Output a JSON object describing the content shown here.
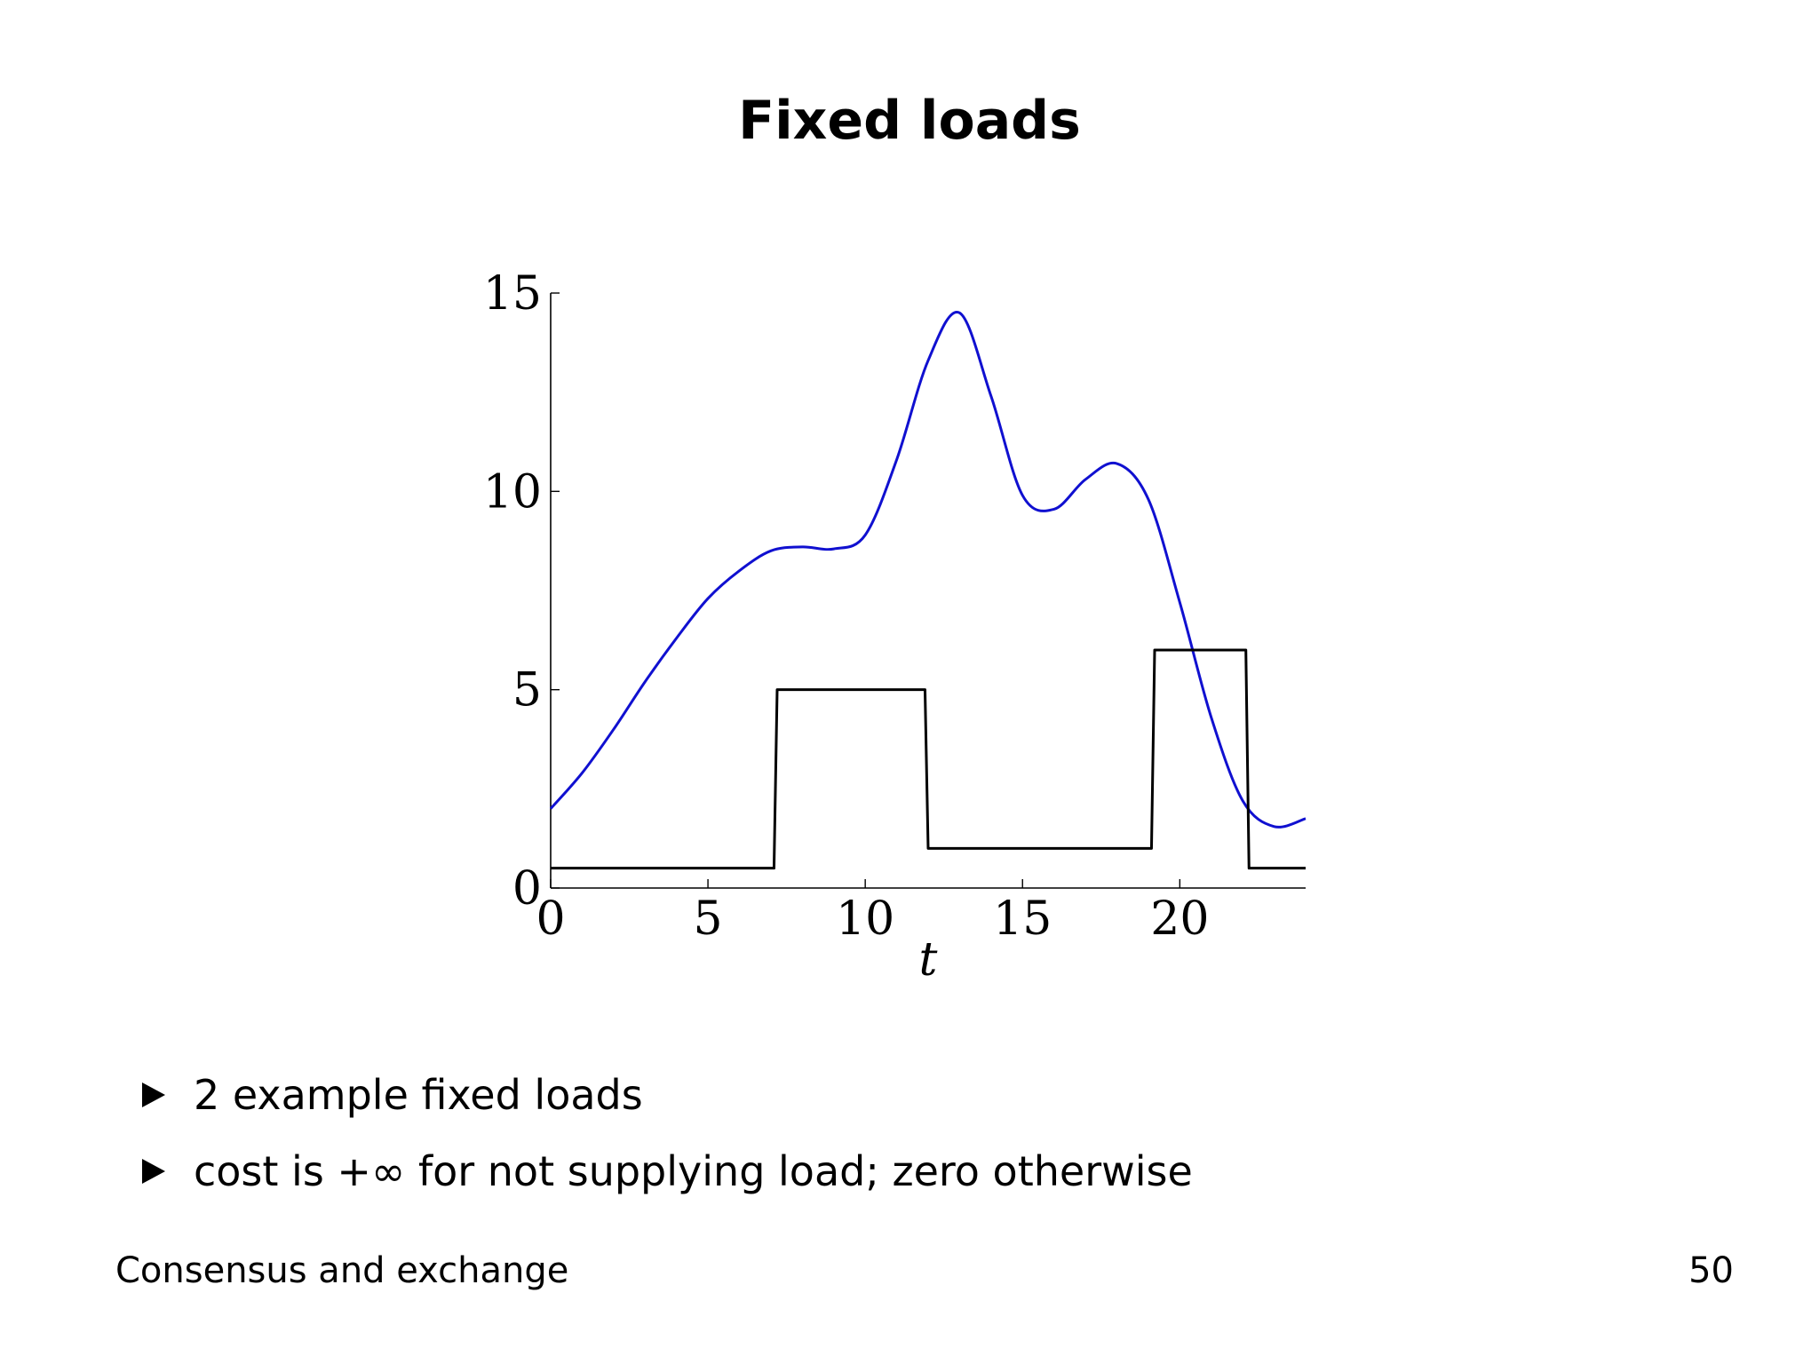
{
  "slide": {
    "title": "Fixed loads",
    "bullets": [
      "2 example fixed loads",
      "cost is +∞ for not supplying load; zero otherwise"
    ],
    "footer_left": "Consensus and exchange",
    "page_number": "50"
  },
  "chart_data": {
    "type": "line",
    "title": "",
    "xlabel": "t",
    "ylabel": "",
    "xlim": [
      0,
      24
    ],
    "ylim": [
      0,
      15
    ],
    "xticks": [
      0,
      5,
      10,
      15,
      20
    ],
    "yticks": [
      0,
      5,
      10,
      15
    ],
    "grid": false,
    "series": [
      {
        "color": "#1010d0",
        "style": "smooth",
        "x": [
          0,
          1,
          2,
          3,
          4,
          5,
          6,
          7,
          8,
          9,
          10,
          11,
          12,
          13,
          14,
          15,
          16,
          17,
          18,
          19,
          20,
          21,
          22,
          23,
          24
        ],
        "y": [
          2.0,
          2.9,
          4.0,
          5.2,
          6.3,
          7.3,
          8.0,
          8.5,
          8.6,
          8.55,
          8.9,
          10.8,
          13.3,
          14.5,
          12.4,
          9.9,
          9.55,
          10.3,
          10.7,
          9.8,
          7.2,
          4.3,
          2.2,
          1.55,
          1.75
        ]
      },
      {
        "color": "#000000",
        "style": "step",
        "x": [
          0,
          7.1,
          7.2,
          11.9,
          12.0,
          19.1,
          19.2,
          22.1,
          22.2,
          24
        ],
        "y": [
          0.5,
          0.5,
          5.0,
          5.0,
          1.0,
          1.0,
          6.0,
          6.0,
          0.5,
          0.5
        ]
      }
    ]
  }
}
